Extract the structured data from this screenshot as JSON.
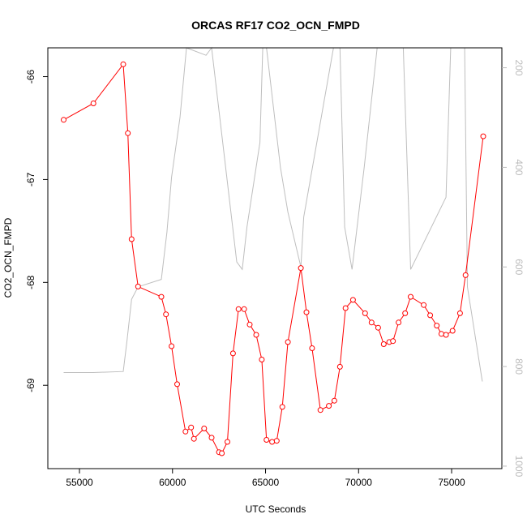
{
  "chart_data": {
    "type": "line",
    "title": "ORCAS RF17 CO2_OCN_FMPD",
    "xlabel": "UTC Seconds",
    "ylabel": "CO2_OCN_FMPD",
    "xlim": [
      53300,
      77700
    ],
    "ylim": [
      -69.81,
      -65.72
    ],
    "y2lim": [
      1005,
      160
    ],
    "x_ticks": [
      55000,
      60000,
      65000,
      70000,
      75000
    ],
    "x_tick_labels": [
      "55000",
      "60000",
      "65000",
      "70000",
      "75000"
    ],
    "y_ticks": [
      -66,
      -67,
      -68,
      -69
    ],
    "y_tick_labels": [
      "-66",
      "-67",
      "-68",
      "-69"
    ],
    "y2_ticks": [
      200,
      400,
      600,
      800,
      1000
    ],
    "y2_tick_labels": [
      "200",
      "400",
      "600",
      "800",
      "1000"
    ],
    "grid": false,
    "colors": {
      "primary": "#ff0000",
      "secondary": "#bebebe"
    },
    "series": [
      {
        "axis": "left",
        "style": "line-points",
        "x": [
          54150,
          55750,
          57350,
          57600,
          57800,
          58150,
          59400,
          59650,
          59950,
          60250,
          60700,
          61000,
          61150,
          61700,
          62100,
          62500,
          62650,
          62950,
          63250,
          63550,
          63850,
          64150,
          64500,
          64800,
          65050,
          65350,
          65600,
          65900,
          66200,
          66900,
          67200,
          67500,
          67950,
          68400,
          68700,
          69000,
          69300,
          69700,
          70350,
          70700,
          71050,
          71350,
          71650,
          71850,
          72150,
          72500,
          72800,
          73500,
          73850,
          74200,
          74450,
          74700,
          75050,
          75450,
          75750,
          76700
        ],
        "y": [
          -66.42,
          -66.26,
          -65.88,
          -66.55,
          -67.58,
          -68.04,
          -68.14,
          -68.31,
          -68.62,
          -68.99,
          -69.45,
          -69.41,
          -69.52,
          -69.42,
          -69.51,
          -69.65,
          -69.66,
          -69.55,
          -68.69,
          -68.26,
          -68.26,
          -68.41,
          -68.51,
          -68.75,
          -69.53,
          -69.55,
          -69.54,
          -69.21,
          -68.58,
          -67.86,
          -68.29,
          -68.64,
          -69.24,
          -69.2,
          -69.15,
          -68.82,
          -68.25,
          -68.17,
          -68.3,
          -68.39,
          -68.44,
          -68.6,
          -68.58,
          -68.57,
          -68.39,
          -68.3,
          -68.14,
          -68.22,
          -68.32,
          -68.42,
          -68.5,
          -68.51,
          -68.47,
          -68.3,
          -67.93,
          -66.58
        ]
      },
      {
        "axis": "right",
        "style": "line",
        "x": [
          54150,
          55750,
          57350,
          57550,
          57800,
          58150,
          59400,
          59700,
          59950,
          60400,
          60750,
          61800,
          62100,
          63450,
          63750,
          64000,
          64700,
          64850,
          65050,
          65800,
          66200,
          66900,
          67050,
          68650,
          69000,
          69250,
          69650,
          70300,
          71000,
          72400,
          72800,
          74700,
          74950,
          75700,
          75850,
          76650
        ],
        "y": [
          812,
          812,
          810,
          750,
          665,
          640,
          625,
          530,
          420,
          300,
          160,
          175,
          160,
          590,
          605,
          520,
          350,
          160,
          160,
          400,
          490,
          600,
          500,
          160,
          160,
          520,
          605,
          400,
          160,
          160,
          605,
          460,
          160,
          160,
          640,
          830
        ]
      }
    ]
  }
}
